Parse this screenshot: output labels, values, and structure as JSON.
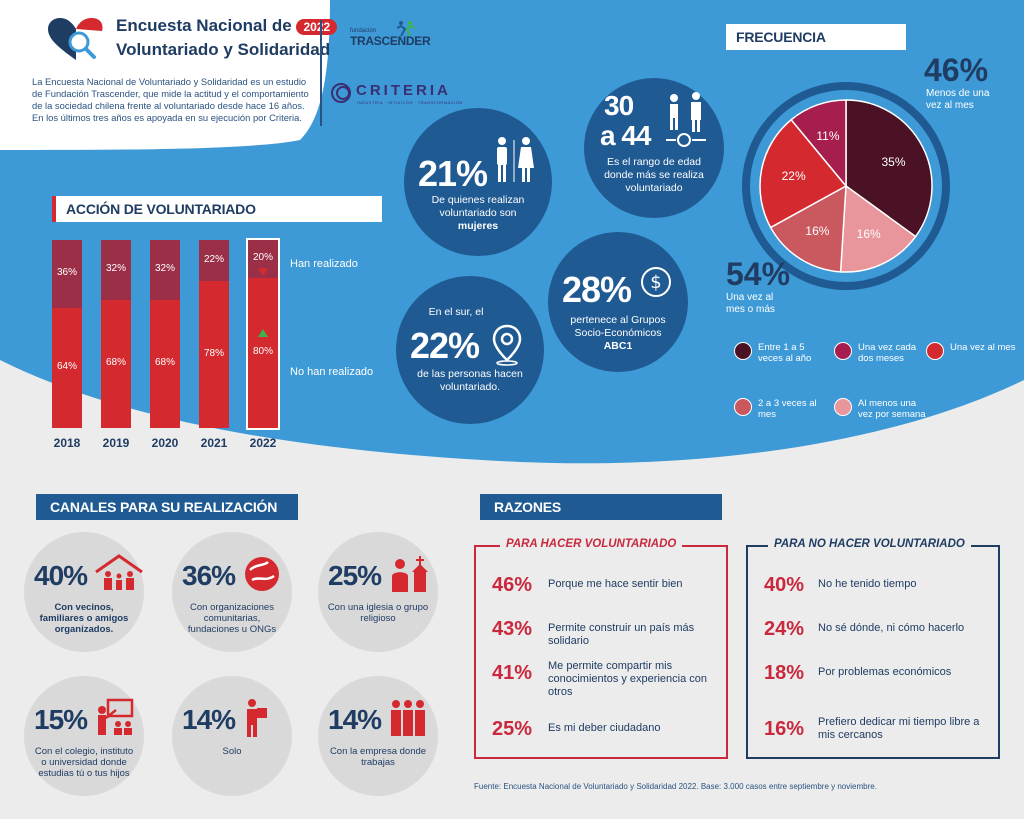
{
  "header": {
    "title_line1": "Encuesta Nacional de",
    "year": "2022",
    "title_line2": "Voluntariado y Solidaridad",
    "intro": "La Encuesta Nacional de Voluntariado y Solidaridad es un estudio de Fundación Trascender, que mide la actitud y el comportamiento de la sociedad chilena frente al voluntariado desde hace 16 años. En los últimos tres años es apoyada en su ejecución por Criteria.",
    "logo1_small": "fundación",
    "logo1_name": "TRASCENDER",
    "logo2_name": "CRITERIA",
    "logo2_sub": "INDUSTRIA · INTUICIÓN · TRANSFORMACIÓN"
  },
  "accion": {
    "title": "ACCIÓN DE VOLUNTARIADO",
    "label_top": "Han realizado",
    "label_bottom": "No han realizado"
  },
  "chart_data": {
    "type": "bar",
    "stacked": true,
    "categories": [
      "2018",
      "2019",
      "2020",
      "2021",
      "2022"
    ],
    "series": [
      {
        "name": "Han realizado",
        "values": [
          36,
          32,
          32,
          22,
          20
        ],
        "color": "#9c2f48"
      },
      {
        "name": "No han realizado",
        "values": [
          64,
          68,
          68,
          78,
          80
        ],
        "color": "#d42a2f"
      }
    ],
    "value_labels_top": [
      "36%",
      "32%",
      "32%",
      "22%",
      "20%"
    ],
    "value_labels_bottom": [
      "64%",
      "68%",
      "68%",
      "78%",
      "80%"
    ],
    "ylim": [
      0,
      100
    ]
  },
  "bubbles": {
    "mujeres": {
      "pct": "21%",
      "text": "De quienes realizan voluntariado son",
      "bold": "mujeres"
    },
    "edad": {
      "range_a": "30",
      "range_b": "a 44",
      "text": "Es el rango de edad donde más se realiza voluntariado"
    },
    "sur": {
      "pre": "En el sur, el",
      "pct": "22%",
      "text": "de las personas hacen voluntariado."
    },
    "abc1": {
      "pct": "28%",
      "text": "pertenece al Grupos Socio-Económicos",
      "bold": "ABC1"
    }
  },
  "frecuencia": {
    "title": "FRECUENCIA",
    "top_pct": "46%",
    "top_text": "Menos de una vez al mes",
    "bottom_pct": "54%",
    "bottom_text": "Una vez al mes o más",
    "pie": [
      {
        "label": "Entre 1 a 5 veces al año",
        "value": 35,
        "display": "35%",
        "color": "#4a1224"
      },
      {
        "label": "Al menos una vez por semana",
        "value": 16,
        "display": "16%",
        "color": "#e8959b"
      },
      {
        "label": "2 a 3 veces al mes",
        "value": 16,
        "display": "16%",
        "color": "#c9585f"
      },
      {
        "label": "Una vez al mes",
        "value": 22,
        "display": "22%",
        "color": "#d42a2f"
      },
      {
        "label": "Una vez cada dos meses",
        "value": 11,
        "display": "11%",
        "color": "#a61e4d"
      }
    ],
    "legend": [
      {
        "text": "Entre 1 a 5 veces al año",
        "color": "#4a1224"
      },
      {
        "text": "Una vez cada dos meses",
        "color": "#a61e4d"
      },
      {
        "text": "Una vez al mes",
        "color": "#d42a2f"
      },
      {
        "text": "2 a 3 veces al mes",
        "color": "#c9585f"
      },
      {
        "text": "Al menos una vez por semana",
        "color": "#e8959b"
      }
    ]
  },
  "canales": {
    "title": "CANALES PARA SU REALIZACIÓN",
    "items": [
      {
        "pct": "40%",
        "text": "Con vecinos, familiares o amigos organizados.",
        "bold": true
      },
      {
        "pct": "36%",
        "text": "Con organizaciones comunitarias, fundaciones u ONGs",
        "bold": false
      },
      {
        "pct": "25%",
        "text": "Con una iglesia o grupo religioso",
        "bold": false
      },
      {
        "pct": "15%",
        "text": "Con el colegio, instituto o universidad donde estudias tú o tus hijos",
        "bold": false
      },
      {
        "pct": "14%",
        "text": "Solo",
        "bold": false
      },
      {
        "pct": "14%",
        "text": "Con la empresa donde trabajas",
        "bold": false
      }
    ]
  },
  "razones": {
    "title": "RAZONES",
    "si_title": "PARA HACER VOLUNTARIADO",
    "no_title_pre": "PARA",
    "no_title_bold": "NO",
    "no_title_post": "HACER VOLUNTARIADO",
    "si": [
      {
        "pct": "46%",
        "text": "Porque me hace sentir bien"
      },
      {
        "pct": "43%",
        "text": "Permite construir un país más solidario"
      },
      {
        "pct": "41%",
        "text": "Me permite compartir mis conocimientos y experiencia con otros"
      },
      {
        "pct": "25%",
        "text": "Es mi deber ciudadano"
      }
    ],
    "no": [
      {
        "pct": "40%",
        "text": "No he tenido tiempo"
      },
      {
        "pct": "24%",
        "text": "No sé dónde, ni cómo hacerlo"
      },
      {
        "pct": "18%",
        "text": "Por problemas económicos"
      },
      {
        "pct": "16%",
        "text": "Prefiero dedicar mi tiempo libre a mis cercanos"
      }
    ]
  },
  "source": "Fuente: Encuesta Nacional de Voluntariado y Solidaridad 2022. Base: 3.000 casos entre septiembre y noviembre."
}
